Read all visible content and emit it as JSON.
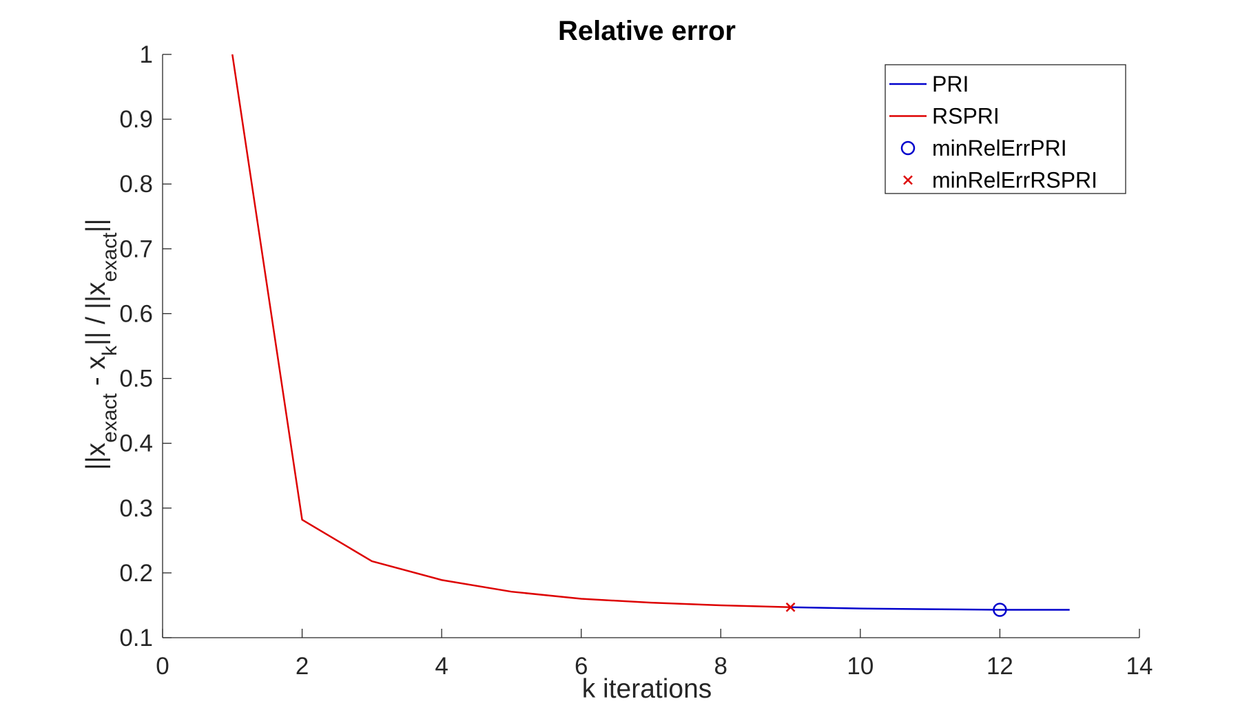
{
  "chart_data": {
    "type": "line",
    "title": "Relative error",
    "xlabel": "k iterations",
    "ylabel": {
      "p1": "||x",
      "s1": "exact",
      "p2": " - x",
      "s2": "k",
      "p3": "|| / ||x",
      "s3": "exact",
      "p4": "||"
    },
    "xlim": [
      0,
      14
    ],
    "ylim": [
      0.1,
      1
    ],
    "xticks": [
      0,
      2,
      4,
      6,
      8,
      10,
      12,
      14
    ],
    "xtick_labels": [
      "0",
      "2",
      "4",
      "6",
      "8",
      "10",
      "12",
      "14"
    ],
    "yticks": [
      0.1,
      0.2,
      0.3,
      0.4,
      0.5,
      0.6,
      0.7,
      0.8,
      0.9,
      1
    ],
    "ytick_labels": [
      "0.1",
      "0.2",
      "0.3",
      "0.4",
      "0.5",
      "0.6",
      "0.7",
      "0.8",
      "0.9",
      "1"
    ],
    "grid": false,
    "legend_position": "top-right",
    "series": [
      {
        "name": "PRI",
        "color": "#0000cc",
        "kind": "line",
        "x": [
          9,
          10,
          11,
          12,
          13
        ],
        "y": [
          0.147,
          0.145,
          0.144,
          0.143,
          0.143
        ]
      },
      {
        "name": "RSPRI",
        "color": "#dd0000",
        "kind": "line",
        "x": [
          1,
          2,
          3,
          4,
          5,
          6,
          7,
          8,
          9
        ],
        "y": [
          1.0,
          0.282,
          0.218,
          0.189,
          0.171,
          0.16,
          0.154,
          0.15,
          0.147
        ]
      },
      {
        "name": "minRelErrPRI",
        "color": "#0000cc",
        "kind": "marker-circle",
        "x": [
          12
        ],
        "y": [
          0.143
        ]
      },
      {
        "name": "minRelErrRSPRI",
        "color": "#dd0000",
        "kind": "marker-x",
        "x": [
          9
        ],
        "y": [
          0.147
        ]
      }
    ]
  }
}
